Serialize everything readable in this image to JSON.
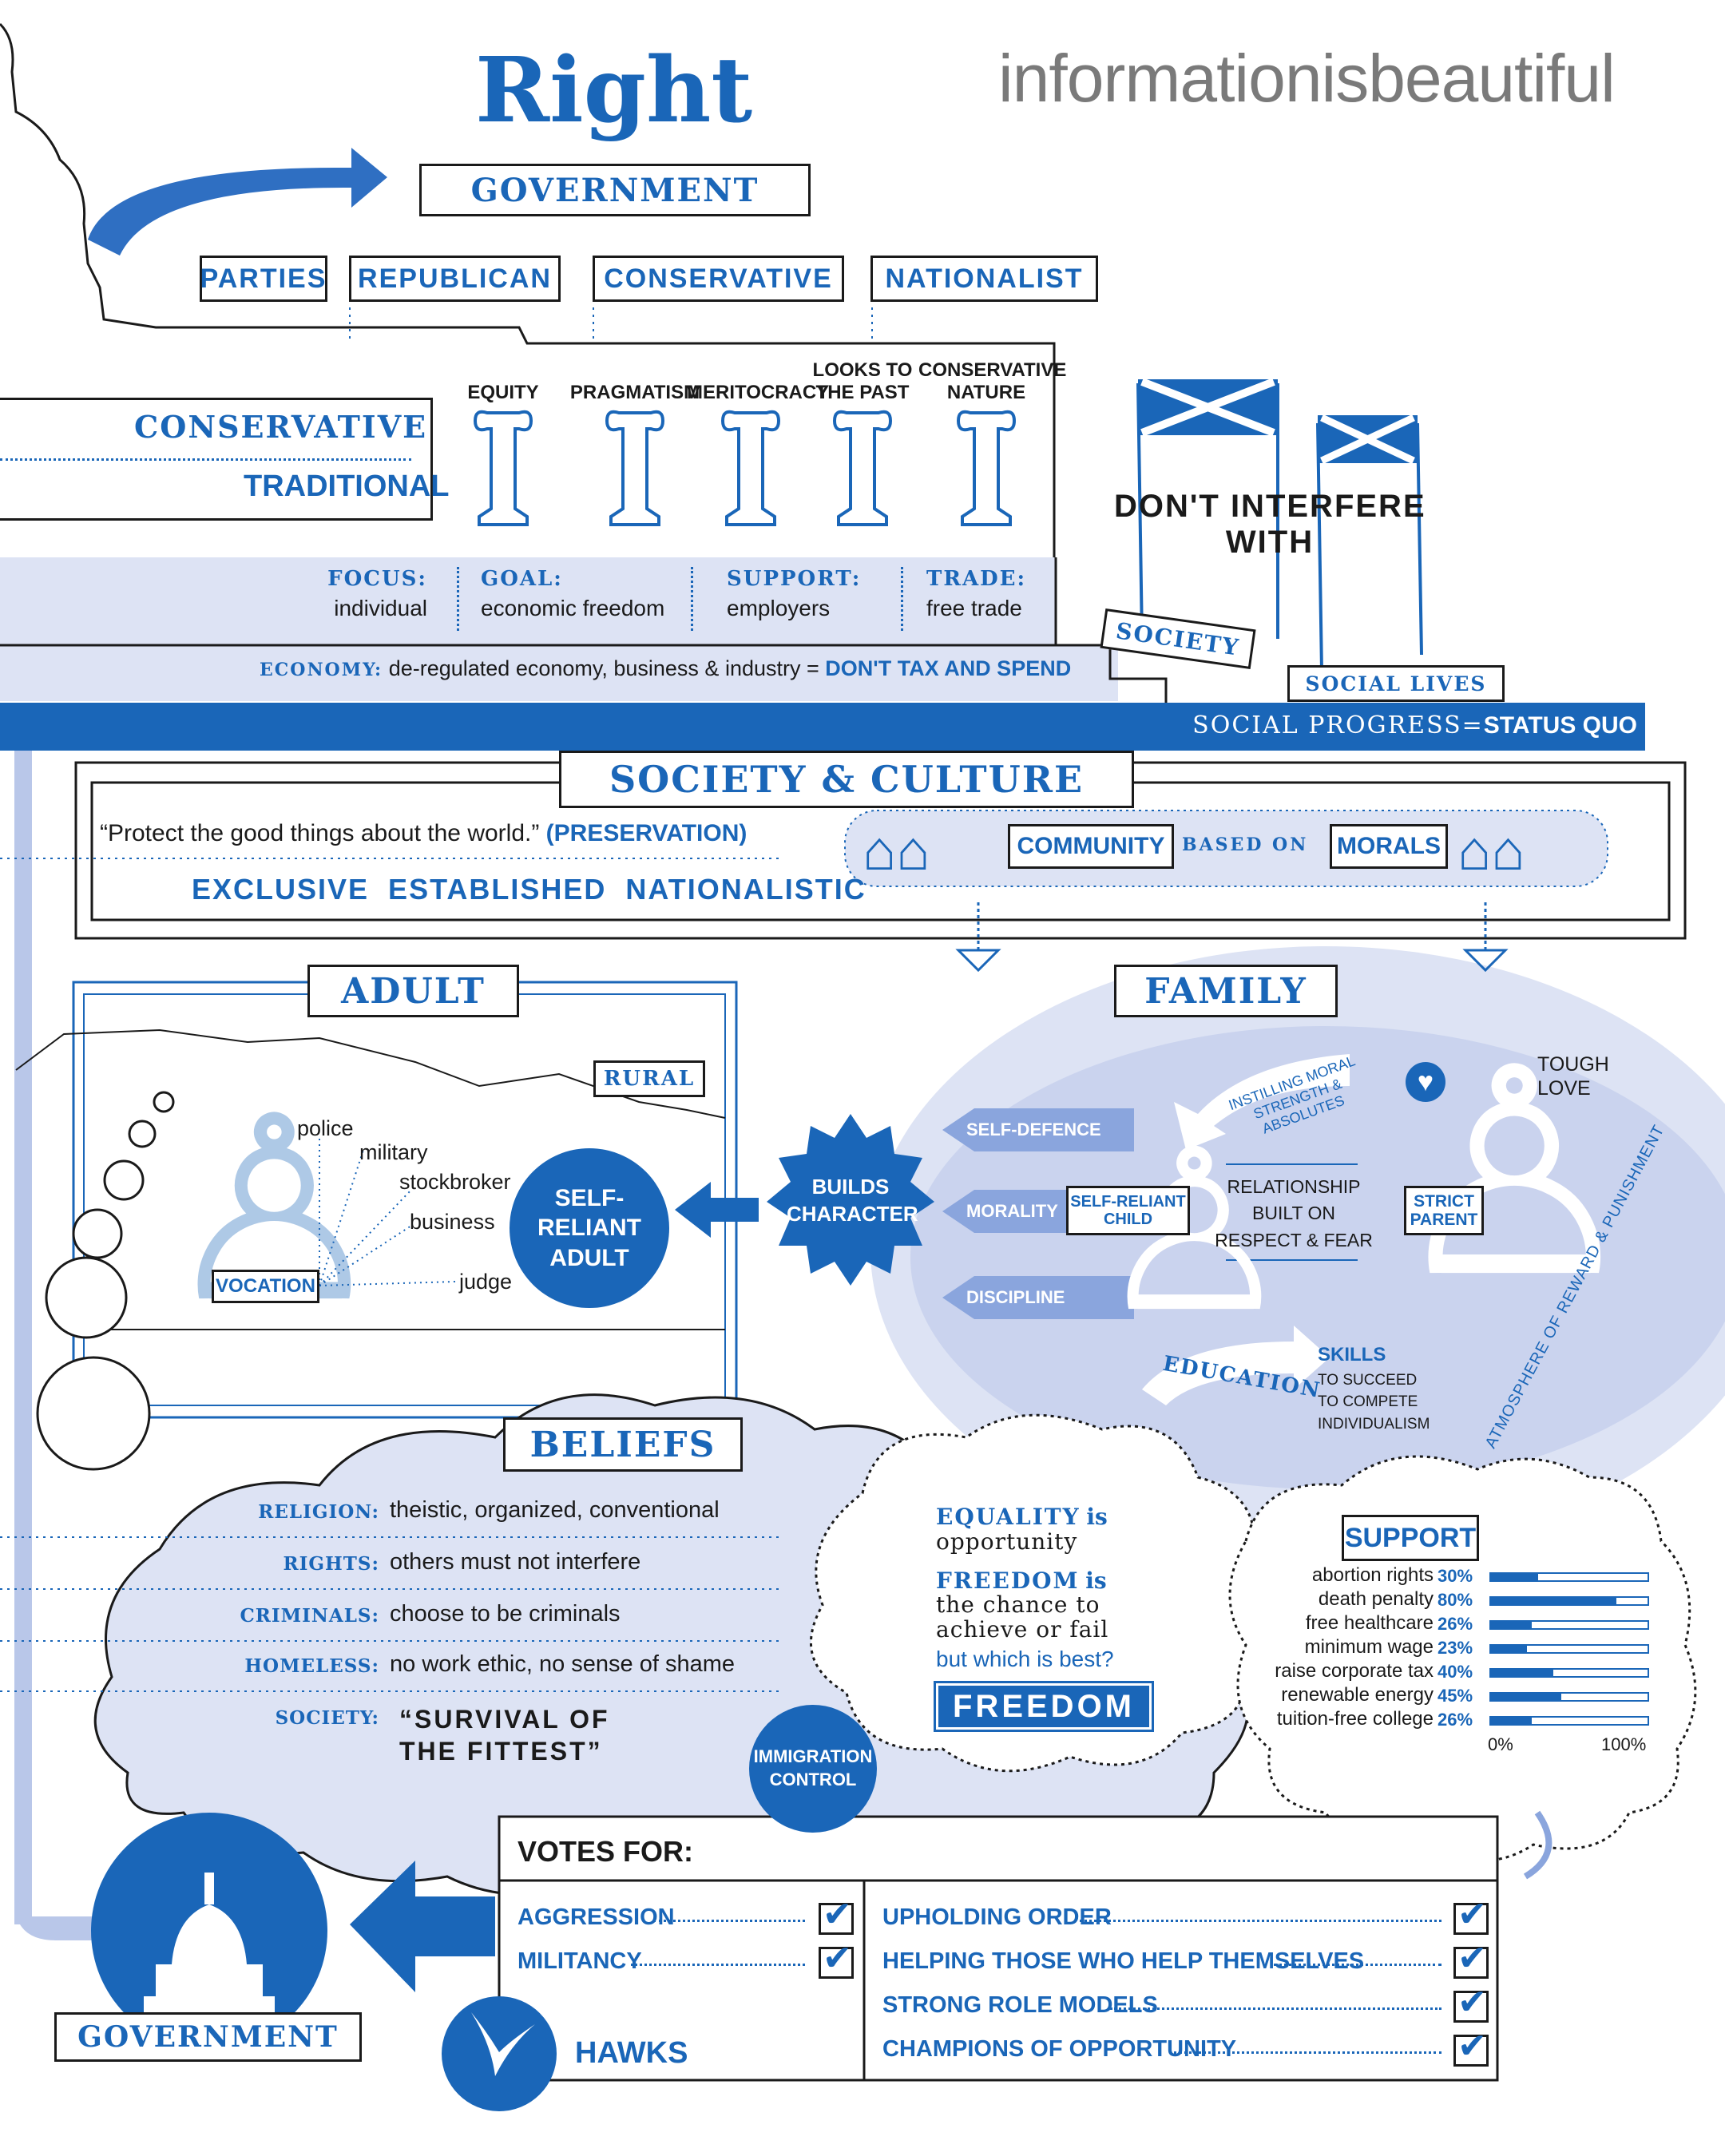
{
  "brand": "informationisbeautiful",
  "title": "Right",
  "government_top": "GOVERNMENT",
  "government_bottom": "GOVERNMENT",
  "parties": [
    "PARTIES",
    "REPUBLICAN",
    "CONSERVATIVE",
    "NATIONALIST"
  ],
  "outlook": {
    "conservative": "CONSERVATIVE",
    "traditional": "TRADITIONAL"
  },
  "pillars": [
    {
      "line1": "",
      "line2": "EQUITY"
    },
    {
      "line1": "",
      "line2": "PRAGMATISM"
    },
    {
      "line1": "",
      "line2": "MERITOCRACY"
    },
    {
      "line1": "LOOKS TO",
      "line2": "THE PAST"
    },
    {
      "line1": "CONSERVATIVE",
      "line2": "NATURE"
    }
  ],
  "focus_row": [
    {
      "label": "FOCUS:",
      "value": "individual"
    },
    {
      "label": "GOAL:",
      "value": "economic freedom"
    },
    {
      "label": "SUPPORT:",
      "value": "employers"
    },
    {
      "label": "TRADE:",
      "value": "free trade"
    }
  ],
  "economy": {
    "label": "ECONOMY:",
    "text": "de-regulated economy, business & industry =",
    "emphasis": "DON'T TAX AND SPEND"
  },
  "dont_interfere": {
    "line1": "DON'T INTERFERE",
    "line2": "WITH",
    "society": "SOCIETY",
    "social_lives": "SOCIAL LIVES"
  },
  "social_progress": {
    "label": "SOCIAL PROGRESS=",
    "value": "STATUS QUO"
  },
  "society_culture": {
    "title": "SOCIETY & CULTURE",
    "quote": "“Protect the good things about the world.”",
    "quote_tag": "(PRESERVATION)",
    "keywords": "EXCLUSIVE  ESTABLISHED  NATIONALISTIC",
    "community": "COMMUNITY",
    "based_on": "BASED ON",
    "morals": "MORALS"
  },
  "adult": {
    "title": "ADULT",
    "rural": "RURAL",
    "vocation": "VOCATION",
    "jobs": [
      "police",
      "military",
      "stockbroker",
      "business",
      "judge"
    ],
    "self_reliant": [
      "SELF-",
      "RELIANT",
      "ADULT"
    ]
  },
  "builds_character": [
    "BUILDS",
    "CHARACTER"
  ],
  "family": {
    "title": "FAMILY",
    "traits": [
      "SELF-DEFENCE",
      "MORALITY",
      "DISCIPLINE"
    ],
    "child": [
      "SELF-RELIANT",
      "CHILD"
    ],
    "parent": [
      "STRICT",
      "PARENT"
    ],
    "relationship": [
      "RELATIONSHIP",
      "BUILT ON",
      "RESPECT & FEAR"
    ],
    "instilling": "INSTILLING MORAL STRENGTH & ABSOLUTES",
    "tough_love": [
      "TOUGH",
      "LOVE"
    ],
    "education": "EDUCATION",
    "skills": [
      "SKILLS",
      "TO SUCCEED",
      "TO COMPETE",
      "INDIVIDUALISM"
    ],
    "atmosphere": "ATMOSPHERE OF REWARD & PUNISHMENT"
  },
  "beliefs": {
    "title": "BELIEFS",
    "rows": [
      {
        "label": "RELIGION:",
        "value": "theistic, organized, conventional"
      },
      {
        "label": "RIGHTS:",
        "value": "others must not interfere"
      },
      {
        "label": "CRIMINALS:",
        "value": "choose to be criminals"
      },
      {
        "label": "HOMELESS:",
        "value": "no work ethic, no sense of shame"
      },
      {
        "label": "SOCIETY:",
        "value": "“SURVIVAL OF THE FITTEST”"
      }
    ],
    "immigration": [
      "IMMIGRATION",
      "CONTROL"
    ]
  },
  "equality": {
    "equality_label": "EQUALITY",
    "is": "is",
    "equality_value": "opportunity",
    "freedom_label": "FREEDOM",
    "freedom_value": "the chance to achieve or fail",
    "question": "but which is best?",
    "answer": "FREEDOM"
  },
  "support": {
    "title": "SUPPORT",
    "axis_min": "0%",
    "axis_max": "100%",
    "items": [
      {
        "label": "abortion rights",
        "pct_label": "30%",
        "value": 30
      },
      {
        "label": "death penalty",
        "pct_label": "80%",
        "value": 80
      },
      {
        "label": "free healthcare",
        "pct_label": "26%",
        "value": 26
      },
      {
        "label": "minimum wage",
        "pct_label": "23%",
        "value": 23
      },
      {
        "label": "raise corporate tax",
        "pct_label": "40%",
        "value": 40
      },
      {
        "label": "renewable energy",
        "pct_label": "45%",
        "value": 45
      },
      {
        "label": "tuition-free college",
        "pct_label": "26%",
        "value": 26
      }
    ]
  },
  "votes": {
    "title": "VOTES FOR:",
    "left": [
      "AGGRESSION",
      "MILITANCY"
    ],
    "right": [
      "UPHOLDING ORDER",
      "HELPING THOSE WHO HELP THEMSELVES",
      "STRONG ROLE MODELS",
      "CHAMPIONS OF OPPORTUNITY"
    ],
    "hawks": "HAWKS"
  },
  "colors": {
    "accent": "#1a66b8",
    "light": "#dde3f4",
    "mid": "#8aa5dd"
  }
}
